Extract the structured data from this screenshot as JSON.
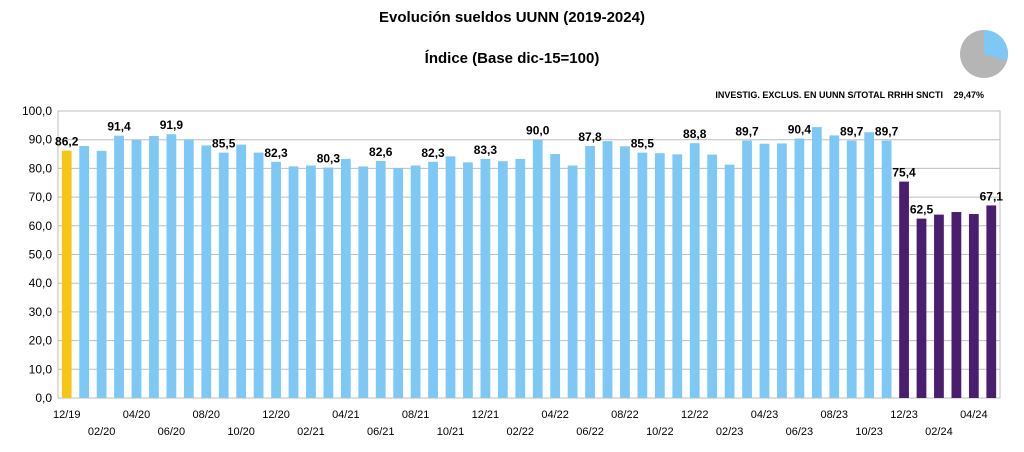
{
  "chart_data": {
    "type": "bar",
    "title": "Evolución sueldos UUNN (2019-2024)",
    "subtitle": "Índice (Base dic-15=100)",
    "annotation": {
      "label": "INVESTIG. EXCLUS. EN UUNN S/TOTAL RRHH SNCTI",
      "value": "29,47%",
      "pie_fraction": 0.2947
    },
    "ylim": [
      0,
      100
    ],
    "yticks": [
      "0,0",
      "10,0",
      "20,0",
      "30,0",
      "40,0",
      "50,0",
      "60,0",
      "70,0",
      "80,0",
      "90,0",
      "100,0"
    ],
    "grid": true,
    "xtick_labels": [
      {
        "index": 0,
        "text": "12/19",
        "row": 1
      },
      {
        "index": 2,
        "text": "02/20",
        "row": 2
      },
      {
        "index": 4,
        "text": "04/20",
        "row": 1
      },
      {
        "index": 6,
        "text": "06/20",
        "row": 2
      },
      {
        "index": 8,
        "text": "08/20",
        "row": 1
      },
      {
        "index": 10,
        "text": "10/20",
        "row": 2
      },
      {
        "index": 12,
        "text": "12/20",
        "row": 1
      },
      {
        "index": 14,
        "text": "02/21",
        "row": 2
      },
      {
        "index": 16,
        "text": "04/21",
        "row": 1
      },
      {
        "index": 18,
        "text": "06/21",
        "row": 2
      },
      {
        "index": 20,
        "text": "08/21",
        "row": 1
      },
      {
        "index": 22,
        "text": "10/21",
        "row": 2
      },
      {
        "index": 24,
        "text": "12/21",
        "row": 1
      },
      {
        "index": 26,
        "text": "02/22",
        "row": 2
      },
      {
        "index": 28,
        "text": "04/22",
        "row": 1
      },
      {
        "index": 30,
        "text": "06/22",
        "row": 2
      },
      {
        "index": 32,
        "text": "08/22",
        "row": 1
      },
      {
        "index": 34,
        "text": "10/22",
        "row": 2
      },
      {
        "index": 36,
        "text": "12/22",
        "row": 1
      },
      {
        "index": 38,
        "text": "02/23",
        "row": 2
      },
      {
        "index": 40,
        "text": "04/23",
        "row": 1
      },
      {
        "index": 42,
        "text": "06/23",
        "row": 2
      },
      {
        "index": 44,
        "text": "08/23",
        "row": 1
      },
      {
        "index": 46,
        "text": "10/23",
        "row": 2
      },
      {
        "index": 48,
        "text": "12/23",
        "row": 1
      },
      {
        "index": 50,
        "text": "02/24",
        "row": 2
      },
      {
        "index": 52,
        "text": "04/24",
        "row": 1
      }
    ],
    "values": [
      86.2,
      87.8,
      86.1,
      91.4,
      89.9,
      91.3,
      91.9,
      90.1,
      88.0,
      85.5,
      88.3,
      85.5,
      82.3,
      80.7,
      81.0,
      80.3,
      83.3,
      80.7,
      82.6,
      80.1,
      81.0,
      82.3,
      84.2,
      82.1,
      83.3,
      82.5,
      83.3,
      90.0,
      85.0,
      81.0,
      87.8,
      89.5,
      87.7,
      85.5,
      85.3,
      84.9,
      88.8,
      84.8,
      81.3,
      89.7,
      88.6,
      88.7,
      90.4,
      94.4,
      91.5,
      89.7,
      92.6,
      89.7,
      75.4,
      62.5,
      63.9,
      64.8,
      64.1,
      67.1
    ],
    "data_labels": [
      {
        "index": 0,
        "text": "86,2"
      },
      {
        "index": 3,
        "text": "91,4"
      },
      {
        "index": 6,
        "text": "91,9"
      },
      {
        "index": 9,
        "text": "85,5"
      },
      {
        "index": 12,
        "text": "82,3"
      },
      {
        "index": 15,
        "text": "80,3"
      },
      {
        "index": 18,
        "text": "82,6"
      },
      {
        "index": 21,
        "text": "82,3"
      },
      {
        "index": 24,
        "text": "83,3"
      },
      {
        "index": 27,
        "text": "90,0"
      },
      {
        "index": 30,
        "text": "87,8"
      },
      {
        "index": 33,
        "text": "85,5"
      },
      {
        "index": 36,
        "text": "88,8"
      },
      {
        "index": 39,
        "text": "89,7"
      },
      {
        "index": 42,
        "text": "90,4"
      },
      {
        "index": 45,
        "text": "89,7"
      },
      {
        "index": 47,
        "text": "89,7"
      },
      {
        "index": 48,
        "text": "75,4"
      },
      {
        "index": 49,
        "text": "62,5"
      },
      {
        "index": 53,
        "text": "67,1"
      }
    ],
    "color_groups": [
      {
        "from": 0,
        "to": 0,
        "color": "#F5C518"
      },
      {
        "from": 1,
        "to": 47,
        "color": "#7EC8F5"
      },
      {
        "from": 48,
        "to": 53,
        "color": "#4A1E6E"
      }
    ],
    "colors": {
      "grid": "#BDBDBD",
      "pie_main": "#B5B5B5",
      "pie_slice": "#7EC8F5"
    }
  }
}
